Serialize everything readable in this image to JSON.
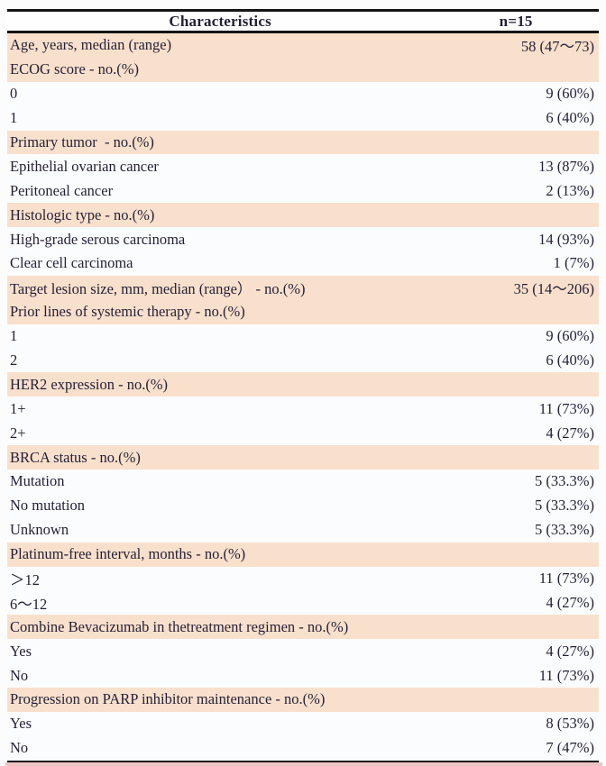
{
  "table": {
    "header": {
      "characteristics": "Characteristics",
      "n": "n=15"
    },
    "rows": [
      {
        "label": "Age, years, median (range)",
        "value": "58 (47〜73)",
        "shaded": true
      },
      {
        "label": "ECOG score - no.(%)",
        "value": "",
        "shaded": true
      },
      {
        "label": "0",
        "value": "9 (60%)",
        "shaded": false
      },
      {
        "label": "1",
        "value": "6 (40%)",
        "shaded": false
      },
      {
        "label": "Primary tumor  - no.(%)",
        "value": "",
        "shaded": true
      },
      {
        "label": "Epithelial ovarian cancer",
        "value": "13 (87%)",
        "shaded": false
      },
      {
        "label": "Peritoneal cancer",
        "value": "2 (13%)",
        "shaded": false
      },
      {
        "label": "Histologic type - no.(%)",
        "value": "",
        "shaded": true
      },
      {
        "label": "High-grade serous carcinoma",
        "value": "14 (93%)",
        "shaded": false
      },
      {
        "label": "Clear cell carcinoma",
        "value": "1 (7%)",
        "shaded": false
      },
      {
        "label": "Target lesion size, mm, median (range） - no.(%)",
        "value": "35 (14〜206)",
        "shaded": true
      },
      {
        "label": "Prior lines of systemic therapy - no.(%)",
        "value": "",
        "shaded": true
      },
      {
        "label": "1",
        "value": "9 (60%)",
        "shaded": false
      },
      {
        "label": "2",
        "value": "6 (40%)",
        "shaded": false
      },
      {
        "label": "HER2 expression - no.(%)",
        "value": "",
        "shaded": true
      },
      {
        "label": "1+",
        "value": "11 (73%)",
        "shaded": false
      },
      {
        "label": "2+",
        "value": "4 (27%)",
        "shaded": false
      },
      {
        "label": "BRCA status - no.(%)",
        "value": "",
        "shaded": true
      },
      {
        "label": "Mutation",
        "value": "5 (33.3%)",
        "shaded": false
      },
      {
        "label": "No mutation",
        "value": "5 (33.3%)",
        "shaded": false
      },
      {
        "label": "Unknown",
        "value": "5 (33.3%)",
        "shaded": false
      },
      {
        "label": "Platinum-free interval, months - no.(%)",
        "value": "",
        "shaded": true
      },
      {
        "label": "＞12",
        "value": "11 (73%)",
        "shaded": false
      },
      {
        "label": "6〜12",
        "value": "4 (27%)",
        "shaded": false
      },
      {
        "label": "Combine Bevacizumab in thetreatment regimen - no.(%)",
        "value": "",
        "shaded": true
      },
      {
        "label": "Yes",
        "value": "4 (27%)",
        "shaded": false
      },
      {
        "label": "No",
        "value": "11 (73%)",
        "shaded": false
      },
      {
        "label": "Progression on PARP inhibitor maintenance - no.(%)",
        "value": "",
        "shaded": true
      },
      {
        "label": "Yes",
        "value": "8 (53%)",
        "shaded": false
      },
      {
        "label": "No",
        "value": "7 (47%)",
        "shaded": false
      }
    ]
  },
  "colors": {
    "shaded_row": "#f9e0cc",
    "plain_row": "#fbfcfe",
    "rule": "#141414",
    "text": "#241f36",
    "bottom_strip": "#eec3c6"
  }
}
